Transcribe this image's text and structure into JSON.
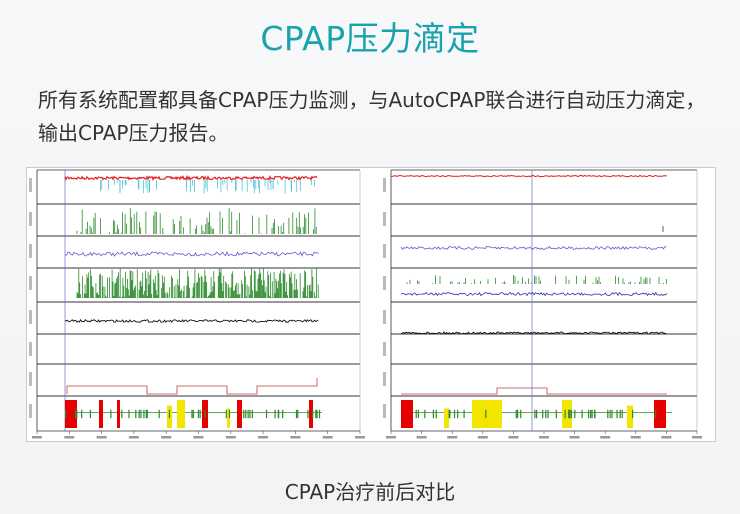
{
  "title": "CPAP压力滴定",
  "description": "所有系统配置都具备CPAP压力监测，与AutoCPAP联合进行自动压力滴定，输出CPAP压力报告。",
  "caption": "CPAP治疗前后对比",
  "colors": {
    "accent": "#1aa3ad",
    "spo2": "#e02020",
    "spo2_dip": "#4fc3d9",
    "green_trace": "#2e8b2e",
    "purple_trace": "#6a5acd",
    "black_trace": "#111111",
    "stage_red": "#e60000",
    "stage_yellow": "#f2e600",
    "stage_green": "#2e8b2e",
    "cursor": "#6b6bd6"
  }
}
